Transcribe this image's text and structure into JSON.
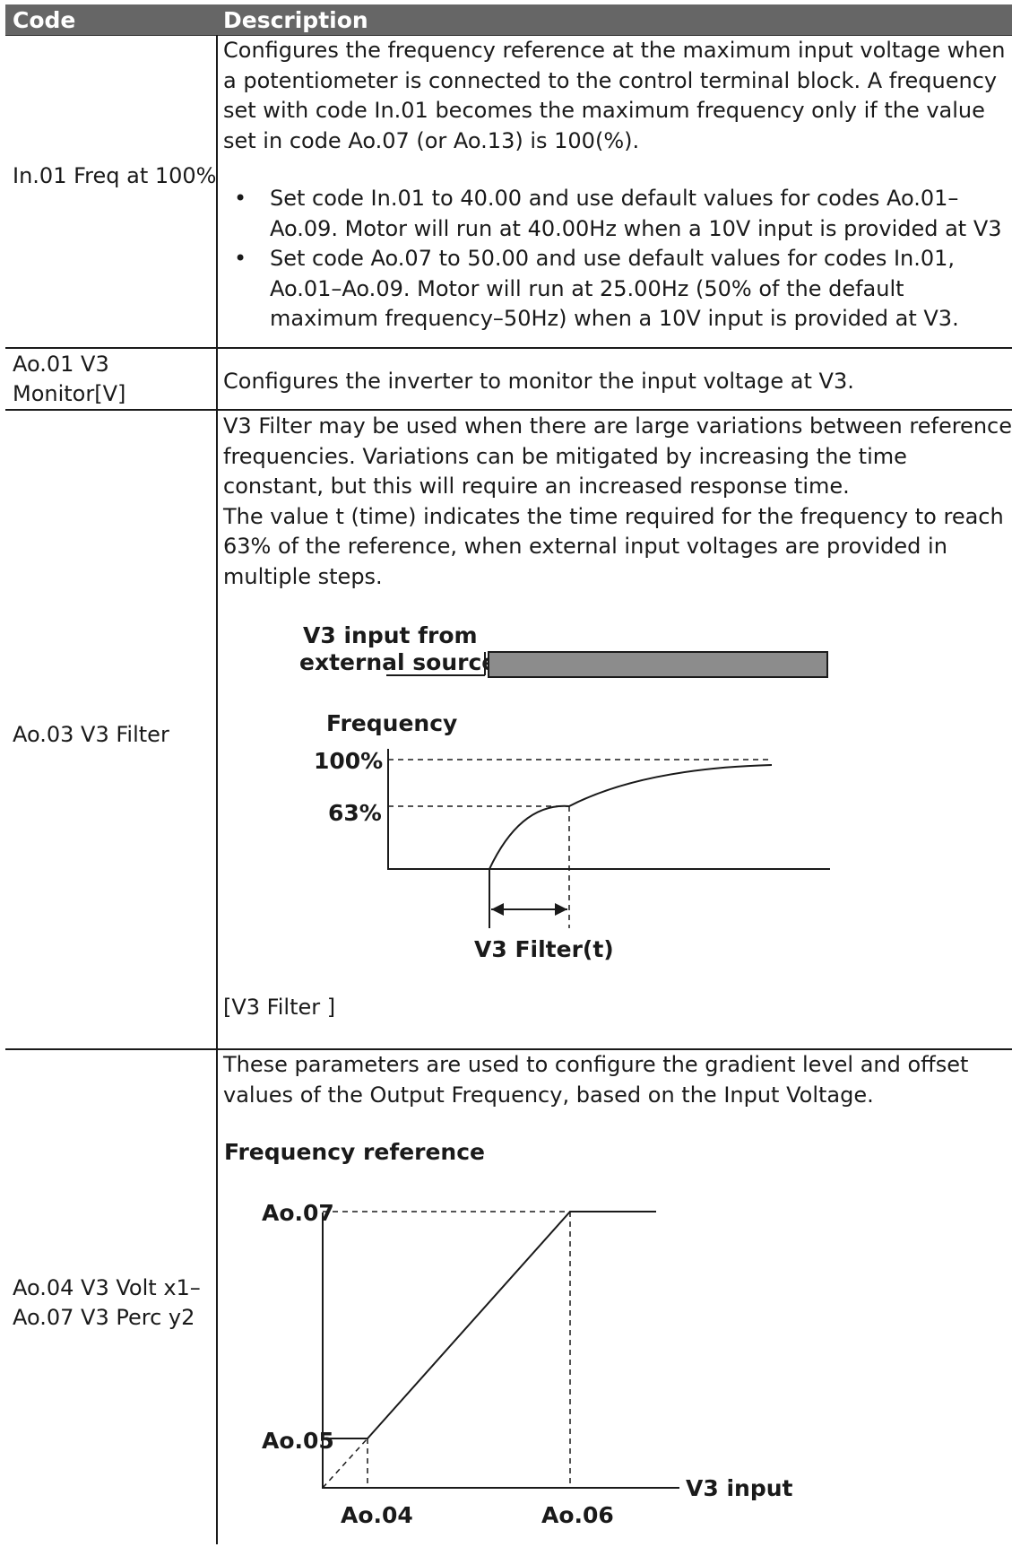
{
  "header": {
    "code": "Code",
    "description": "Description"
  },
  "rows": [
    {
      "code": "In.01 Freq at 100%",
      "paragraph": "Configures the frequency reference at the maximum input voltage when a potentiometer is connected to the control terminal block. A frequency set with code In.01 becomes the maximum frequency only if the value set in code Ao.07 (or Ao.13) is 100(%).",
      "bullets": [
        "Set code In.01 to 40.00 and use default values for codes Ao.01–Ao.09. Motor will run at 40.00Hz when a 10V input is provided at V3",
        "Set code Ao.07 to 50.00 and use default values for codes In.01, Ao.01–Ao.09. Motor will run at 25.00Hz (50% of the default maximum frequency–50Hz) when a 10V input is provided at V3."
      ]
    },
    {
      "code": "Ao.01 V3 Monitor[V]",
      "paragraph": "Configures the inverter to monitor the input voltage at V3."
    },
    {
      "code": "Ao.03 V3 Filter",
      "paragraph1": "V3 Filter may be used when there are large variations between reference frequencies. Variations can be mitigated by increasing the time constant, but this will require an increased response time.",
      "paragraph2": "The value t (time) indicates the time required for the frequency to reach 63% of the reference, when external input voltages are provided in multiple steps.",
      "figure": {
        "input_label_line1": "V3  input from",
        "input_label_line2": "external source",
        "y_title": "Frequency",
        "level_100": "100%",
        "level_63": "63%",
        "filter_label": "V3 Filter(t)"
      },
      "caption": "[V3 Filter ]"
    },
    {
      "code": "Ao.04 V3 Volt x1– Ao.07 V3 Perc y2",
      "paragraph": "These parameters are used to configure the gradient level and offset values of the Output Frequency, based on the Input Voltage.",
      "figure": {
        "title": "Frequency reference",
        "y_top": "Ao.07",
        "y_low": "Ao.05",
        "x_left": "Ao.04",
        "x_right": "Ao.06",
        "x_axis": "V3 input"
      }
    }
  ]
}
